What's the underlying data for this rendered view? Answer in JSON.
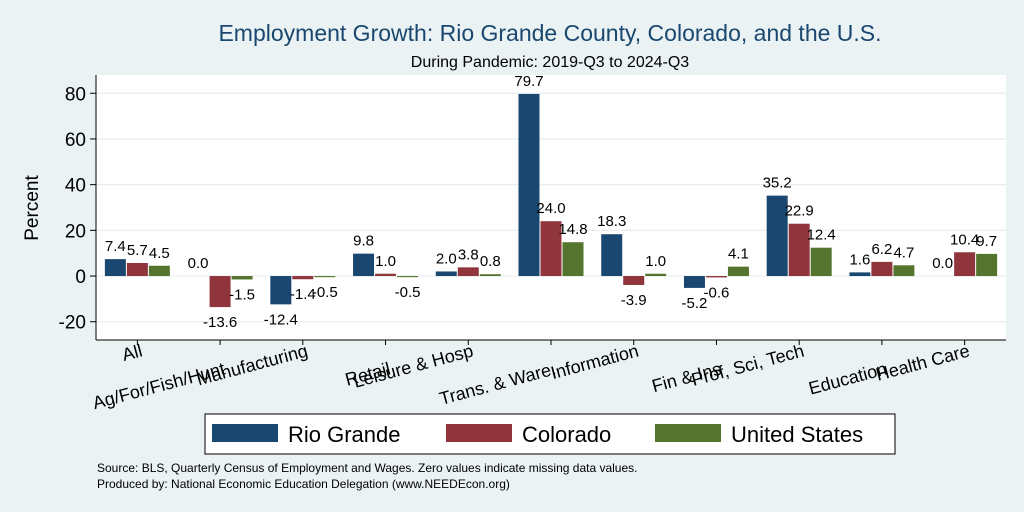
{
  "chart_data": {
    "type": "bar",
    "title": "Employment Growth: Rio Grande County, Colorado, and the U.S.",
    "subtitle": "During Pandemic: 2019-Q3 to 2024-Q3",
    "xlabel": "",
    "ylabel": "Percent",
    "ylim": [
      -28,
      88
    ],
    "yticks": [
      -20,
      0,
      20,
      40,
      60,
      80
    ],
    "ytick_labels": [
      "-20",
      "0",
      "20",
      "40",
      "60",
      "80"
    ],
    "grid": true,
    "legend_position": "bottom",
    "categories": [
      "All",
      "Ag/For/Fish/Hunt",
      "Manufacturing",
      "Retail",
      "Leisure & Hosp",
      "Trans. & Ware.",
      "Information",
      "Fin & Ins",
      "Prof, Sci, Tech",
      "Education",
      "Health Care"
    ],
    "series": [
      {
        "name": "Rio Grande",
        "color": "#1a476f",
        "values": [
          7.4,
          0.0,
          -12.4,
          9.8,
          2.0,
          79.7,
          18.3,
          -5.2,
          35.2,
          1.6,
          0.0
        ],
        "labels": [
          "7.4",
          "0.0",
          "-12.4",
          "9.8",
          "2.0",
          "79.7",
          "18.3",
          "-5.2",
          "35.2",
          "1.6",
          "0.0"
        ]
      },
      {
        "name": "Colorado",
        "color": "#90353b",
        "values": [
          5.7,
          -13.6,
          -1.4,
          1.0,
          3.8,
          24.0,
          -3.9,
          -0.6,
          22.9,
          6.2,
          10.4
        ],
        "labels": [
          "5.7",
          "-13.6",
          "-1.4",
          "1.0",
          "3.8",
          "24.0",
          "-3.9",
          "-0.6",
          "22.9",
          "6.2",
          "10.4"
        ]
      },
      {
        "name": "United States",
        "color": "#55752f",
        "values": [
          4.5,
          -1.5,
          -0.5,
          -0.5,
          0.8,
          14.8,
          1.0,
          4.1,
          12.4,
          4.7,
          9.7
        ],
        "labels": [
          "4.5",
          "-1.5",
          "-0.5",
          "-0.5",
          "0.8",
          "14.8",
          "1.0",
          "4.1",
          "12.4",
          "4.7",
          "9.7"
        ]
      }
    ]
  },
  "notes": {
    "source": "Source: BLS, Quarterly Census of Employment and Wages. Zero values indicate missing data values.",
    "produced_by": "Produced by: National Economic Education Delegation (www.NEEDEcon.org)"
  },
  "colors": {
    "background": "#eaf2f3",
    "plot_background": "#ffffff",
    "title": "#1a476f",
    "grid": "#eaf2f3"
  }
}
